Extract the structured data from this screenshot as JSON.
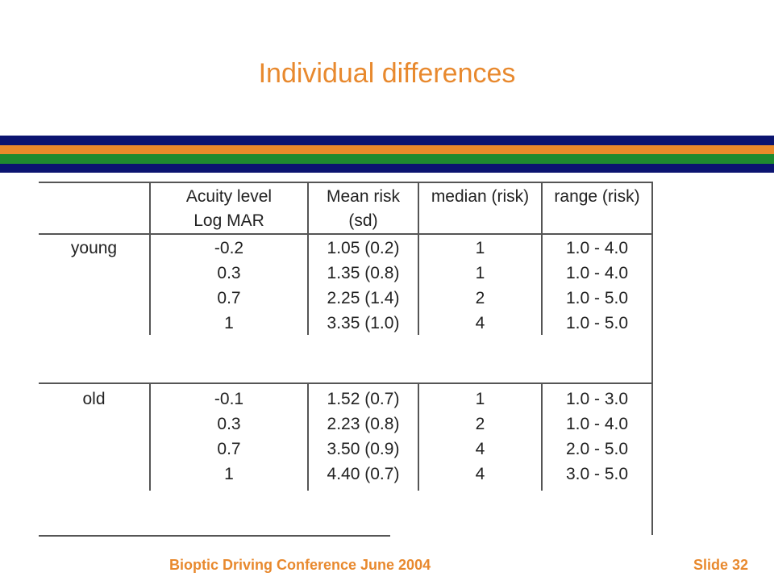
{
  "slide": {
    "title": "Individual differences",
    "footer_left": "Bioptic Driving Conference June 2004",
    "footer_right": "Slide  32"
  },
  "colors": {
    "title": "#e8892e",
    "stripe_navy": "#0b1470",
    "stripe_orange": "#ea8a2a",
    "stripe_green": "#1f8a2f"
  },
  "table": {
    "headers": {
      "acuity_line1": "Acuity level",
      "acuity_line2": "Log MAR",
      "mean_line1": "Mean risk",
      "mean_line2": "(sd)",
      "median": "median (risk)",
      "range": "range (risk)"
    },
    "groups": [
      {
        "label": "young",
        "rows": [
          {
            "acuity": "-0.2",
            "mean": "1.05 (0.2)",
            "median": "1",
            "range": "1.0 - 4.0"
          },
          {
            "acuity": "0.3",
            "mean": "1.35 (0.8)",
            "median": "1",
            "range": "1.0 - 4.0"
          },
          {
            "acuity": "0.7",
            "mean": "2.25 (1.4)",
            "median": "2",
            "range": "1.0 - 5.0"
          },
          {
            "acuity": "1",
            "mean": "3.35 (1.0)",
            "median": "4",
            "range": "1.0 - 5.0"
          }
        ]
      },
      {
        "label": "old",
        "rows": [
          {
            "acuity": "-0.1",
            "mean": "1.52 (0.7)",
            "median": "1",
            "range": "1.0 - 3.0"
          },
          {
            "acuity": "0.3",
            "mean": "2.23 (0.8)",
            "median": "2",
            "range": "1.0 - 4.0"
          },
          {
            "acuity": "0.7",
            "mean": "3.50 (0.9)",
            "median": "4",
            "range": "2.0 - 5.0"
          },
          {
            "acuity": "1",
            "mean": "4.40 (0.7)",
            "median": "4",
            "range": "3.0 - 5.0"
          }
        ]
      }
    ]
  }
}
